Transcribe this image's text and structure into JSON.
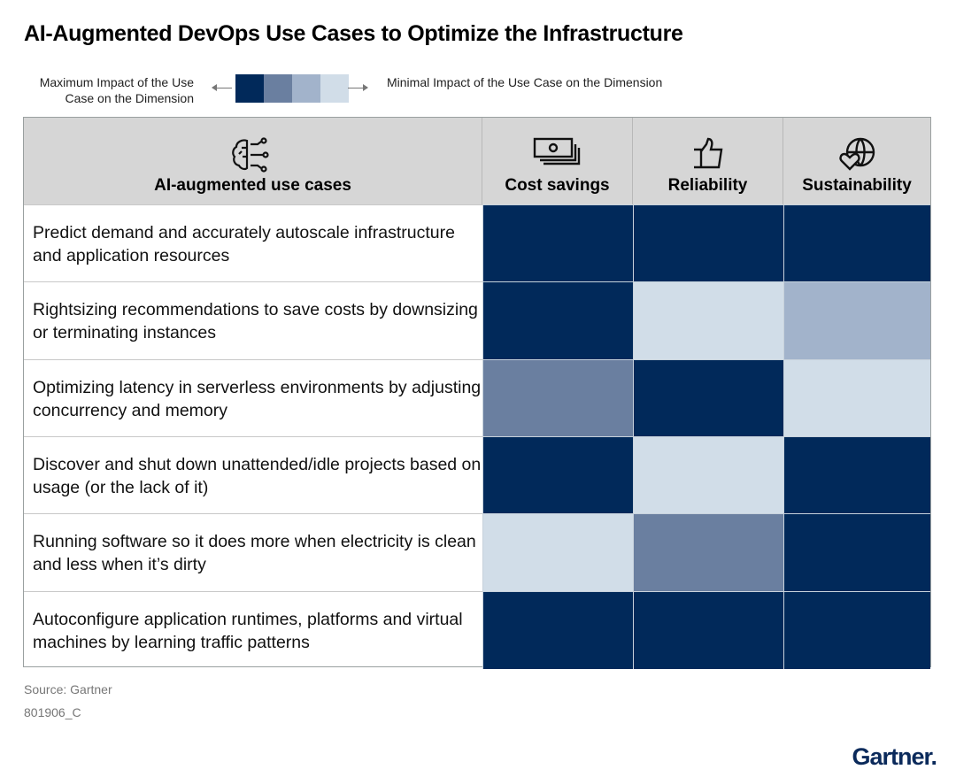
{
  "title": "AI-Augmented DevOps Use Cases to Optimize the Infrastructure",
  "legend": {
    "max_label": "Maximum Impact of the Use Case on the Dimension",
    "min_label": "Minimal Impact of the Use Case on the Dimension",
    "colors": [
      "#01295a",
      "#6a7fa0",
      "#a2b3cb",
      "#d1dde8"
    ]
  },
  "chart_data": {
    "type": "heatmap",
    "title": "AI-Augmented DevOps Use Cases to Optimize the Infrastructure",
    "row_header": "AI-augmented use cases",
    "columns": [
      "Cost savings",
      "Reliability",
      "Sustainability"
    ],
    "column_icons": [
      "money-icon",
      "thumbs-up-icon",
      "globe-heart-icon"
    ],
    "scale": "1 = maximum impact, 4 = minimal impact",
    "rows": [
      {
        "label": "Predict demand and accurately autoscale infrastructure and application resources",
        "values": [
          1,
          1,
          1
        ]
      },
      {
        "label": "Rightsizing recommendations to save costs by downsizing or terminating instances",
        "values": [
          1,
          4,
          3
        ]
      },
      {
        "label": "Optimizing latency in serverless environments by adjusting concurrency and memory",
        "values": [
          2,
          1,
          4
        ]
      },
      {
        "label": "Discover and shut down unattended/idle projects based on usage (or the lack of it)",
        "values": [
          1,
          4,
          1
        ]
      },
      {
        "label": "Running software so it does more when electricity is clean and less when it’s dirty",
        "values": [
          4,
          2,
          1
        ]
      },
      {
        "label": "Autoconfigure application runtimes, platforms and virtual machines by learning traffic patterns",
        "values": [
          1,
          1,
          1
        ]
      }
    ]
  },
  "footer": {
    "source": "Source: Gartner",
    "id": "801906_C",
    "logo": "Gartner."
  }
}
